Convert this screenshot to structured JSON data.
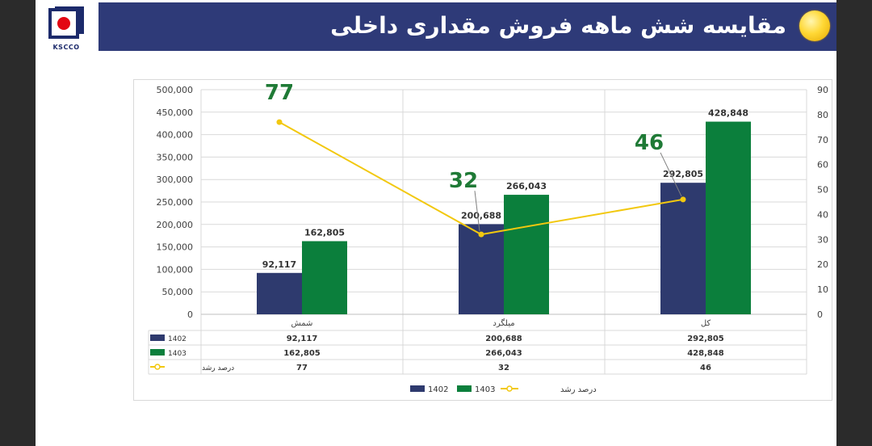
{
  "header": {
    "title": "مقایسه شش ماهه فروش مقداری داخلی",
    "logo_text": "KSCCO",
    "colors": {
      "band": "#2e3a78",
      "logo_blue": "#1c2a6b",
      "logo_red": "#e30613"
    }
  },
  "chart_data": {
    "type": "bar",
    "categories": [
      "شمش",
      "میلگرد",
      "کل"
    ],
    "series": [
      {
        "name": "1402",
        "kind": "bar",
        "axis": "left",
        "color": "#2e3a6e",
        "values": [
          92117,
          200688,
          292805
        ],
        "labels": [
          "92,117",
          "200,688",
          "292,805"
        ]
      },
      {
        "name": "1403",
        "kind": "bar",
        "axis": "left",
        "color": "#0b7f3c",
        "values": [
          162805,
          266043,
          428848
        ],
        "labels": [
          "162,805",
          "266,043",
          "428,848"
        ]
      },
      {
        "name": "درصد رشد",
        "kind": "line",
        "axis": "right",
        "color": "#f2c80f",
        "values": [
          77,
          32,
          46
        ],
        "labels": [
          "77",
          "32",
          "46"
        ]
      }
    ],
    "left_axis": {
      "min": 0,
      "max": 500000,
      "step": 50000,
      "tick_labels": [
        "0",
        "50,000",
        "100,000",
        "150,000",
        "200,000",
        "250,000",
        "300,000",
        "350,000",
        "400,000",
        "450,000",
        "500,000"
      ]
    },
    "right_axis": {
      "min": 0,
      "max": 90,
      "step": 10,
      "tick_labels": [
        "0",
        "10",
        "20",
        "30",
        "40",
        "50",
        "60",
        "70",
        "80",
        "90"
      ]
    },
    "data_table": {
      "rows": [
        {
          "label": "1402",
          "cells": [
            "92,117",
            "200,688",
            "292,805"
          ]
        },
        {
          "label": "1403",
          "cells": [
            "162,805",
            "266,043",
            "428,848"
          ]
        },
        {
          "label": "درصد رشد",
          "cells": [
            "77",
            "32",
            "46"
          ]
        }
      ]
    },
    "legend": {
      "position": "bottom",
      "items": [
        "1402",
        "1403",
        "درصد رشد"
      ]
    },
    "grid": true,
    "highlight_color": "#1f7a36"
  }
}
